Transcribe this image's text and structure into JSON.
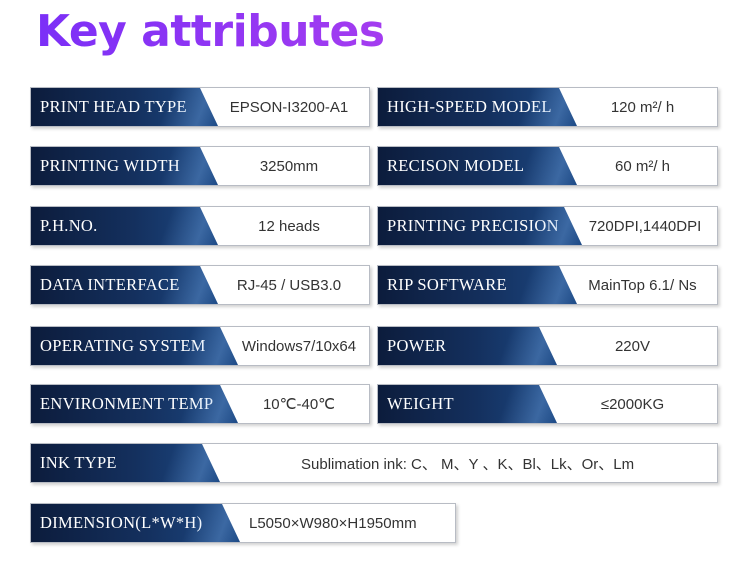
{
  "title": "Key attributes",
  "rows": [
    {
      "label": "PRINT HEAD TYPE",
      "value": "EPSON-I3200-A1"
    },
    {
      "label": "HIGH-SPEED MODEL",
      "value": "120 m²/ h"
    },
    {
      "label": "PRINTING WIDTH",
      "value": "3250mm"
    },
    {
      "label": "RECISON MODEL",
      "value": "60 m²/ h"
    },
    {
      "label": "P.H.NO.",
      "value": "12 heads"
    },
    {
      "label": "PRINTING PRECISION",
      "value": "720DPI,1440DPI"
    },
    {
      "label": "DATA INTERFACE",
      "value": "RJ-45 / USB3.0"
    },
    {
      "label": "RIP SOFTWARE",
      "value": "MainTop 6.1/ Ns"
    },
    {
      "label": "OPERATING SYSTEM",
      "value": "Windows7/10x64"
    },
    {
      "label": "POWER",
      "value": "220V"
    },
    {
      "label": "ENVIRONMENT TEMP",
      "value": "10℃-40℃"
    },
    {
      "label": "WEIGHT",
      "value": "≤2000KG"
    },
    {
      "label": "INK TYPE",
      "value": "Sublimation ink: C、 M、Y 、K、Bl、Lk、Or、Lm"
    },
    {
      "label": "DIMENSION(L*W*H)",
      "value": "L5050×W980×H1950mm"
    }
  ]
}
